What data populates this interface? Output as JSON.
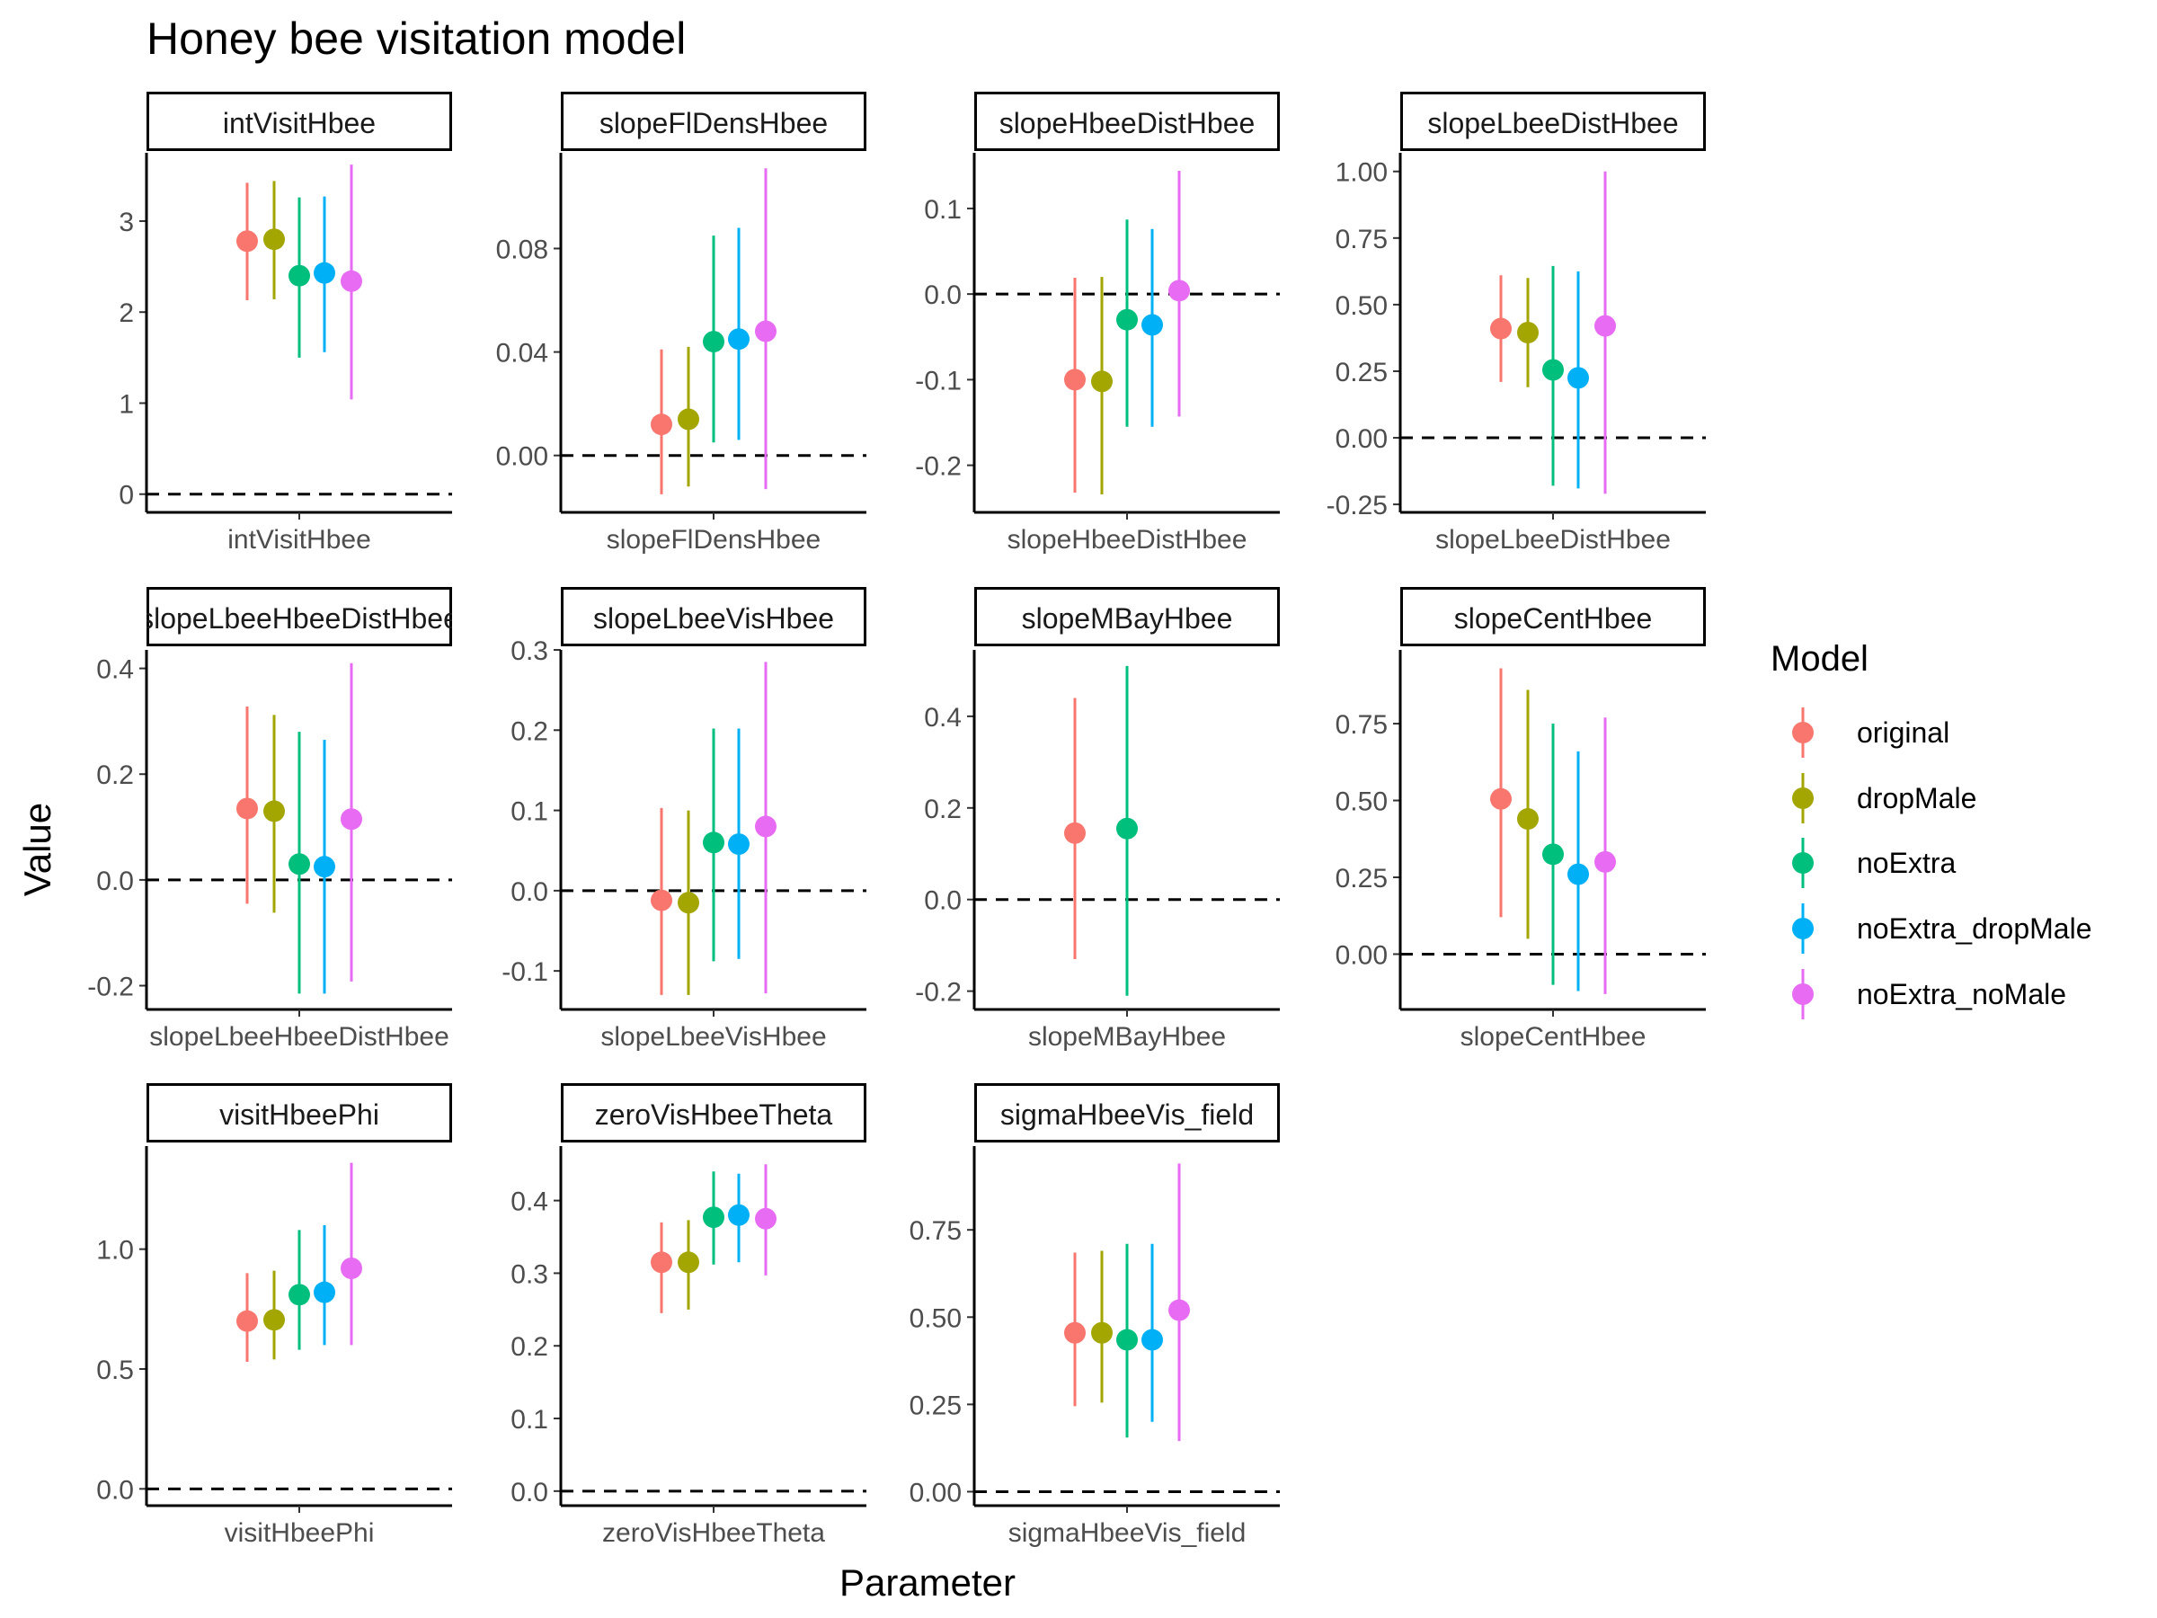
{
  "chart_data": {
    "type": "scatter",
    "title": "Honey bee visitation model",
    "xlabel": "Parameter",
    "ylabel": "Value",
    "legend": {
      "title": "Model",
      "position": "right",
      "entries": [
        "original",
        "dropMale",
        "noExtra",
        "noExtra_dropMale",
        "noExtra_noMale"
      ]
    },
    "series_colors": {
      "original": "#F8766D",
      "dropMale": "#A3A500",
      "noExtra": "#00BF7D",
      "noExtra_dropMale": "#00B0F6",
      "noExtra_noMale": "#E76BF3"
    },
    "reference_line": 0,
    "grid": false,
    "panels": [
      {
        "name": "intVisitHbee",
        "strip": "intVisitHbee",
        "tick_label": "intVisitHbee",
        "ylim": [
          -0.2,
          3.75
        ],
        "yticks": [
          0,
          1,
          2,
          3
        ],
        "ytick_labels": [
          "0",
          "1",
          "2",
          "3"
        ],
        "points": [
          {
            "model": "original",
            "est": 2.78,
            "lo": 2.13,
            "hi": 3.42
          },
          {
            "model": "dropMale",
            "est": 2.8,
            "lo": 2.14,
            "hi": 3.44
          },
          {
            "model": "noExtra",
            "est": 2.4,
            "lo": 1.5,
            "hi": 3.26
          },
          {
            "model": "noExtra_dropMale",
            "est": 2.43,
            "lo": 1.56,
            "hi": 3.27
          },
          {
            "model": "noExtra_noMale",
            "est": 2.34,
            "lo": 1.04,
            "hi": 3.62
          }
        ]
      },
      {
        "name": "slopeFlDensHbee",
        "strip": "slopeFlDensHbee",
        "tick_label": "slopeFlDensHbee",
        "ylim": [
          -0.022,
          0.117
        ],
        "yticks": [
          0,
          0.04,
          0.08
        ],
        "ytick_labels": [
          "0.00",
          "0.04",
          "0.08"
        ],
        "points": [
          {
            "model": "original",
            "est": 0.012,
            "lo": -0.015,
            "hi": 0.041
          },
          {
            "model": "dropMale",
            "est": 0.014,
            "lo": -0.012,
            "hi": 0.042
          },
          {
            "model": "noExtra",
            "est": 0.044,
            "lo": 0.005,
            "hi": 0.085
          },
          {
            "model": "noExtra_dropMale",
            "est": 0.045,
            "lo": 0.006,
            "hi": 0.088
          },
          {
            "model": "noExtra_noMale",
            "est": 0.048,
            "lo": -0.013,
            "hi": 0.111
          }
        ]
      },
      {
        "name": "slopeHbeeDistHbee",
        "strip": "slopeHbeeDistHbee",
        "tick_label": "slopeHbeeDistHbee",
        "ylim": [
          -0.255,
          0.165
        ],
        "yticks": [
          -0.2,
          -0.1,
          0,
          0.1
        ],
        "ytick_labels": [
          "-0.2",
          "-0.1",
          "0.0",
          "0.1"
        ],
        "points": [
          {
            "model": "original",
            "est": -0.1,
            "lo": -0.232,
            "hi": 0.019
          },
          {
            "model": "dropMale",
            "est": -0.102,
            "lo": -0.234,
            "hi": 0.02
          },
          {
            "model": "noExtra",
            "est": -0.03,
            "lo": -0.155,
            "hi": 0.087
          },
          {
            "model": "noExtra_dropMale",
            "est": -0.036,
            "lo": -0.155,
            "hi": 0.076
          },
          {
            "model": "noExtra_noMale",
            "est": 0.004,
            "lo": -0.143,
            "hi": 0.144
          }
        ]
      },
      {
        "name": "slopeLbeeDistHbee",
        "strip": "slopeLbeeDistHbee",
        "tick_label": "slopeLbeeDistHbee",
        "ylim": [
          -0.28,
          1.07
        ],
        "yticks": [
          -0.25,
          0,
          0.25,
          0.5,
          0.75,
          1.0
        ],
        "ytick_labels": [
          "-0.25",
          "0.00",
          "0.25",
          "0.50",
          "0.75",
          "1.00"
        ],
        "points": [
          {
            "model": "original",
            "est": 0.41,
            "lo": 0.21,
            "hi": 0.61
          },
          {
            "model": "dropMale",
            "est": 0.395,
            "lo": 0.19,
            "hi": 0.6
          },
          {
            "model": "noExtra",
            "est": 0.255,
            "lo": -0.18,
            "hi": 0.645
          },
          {
            "model": "noExtra_dropMale",
            "est": 0.225,
            "lo": -0.19,
            "hi": 0.625
          },
          {
            "model": "noExtra_noMale",
            "est": 0.42,
            "lo": -0.21,
            "hi": 1.0
          }
        ]
      },
      {
        "name": "slopeLbeeHbeeDistHbee",
        "strip": "slopeLbeeHbeeDistHbee",
        "tick_label": "slopeLbeeHbeeDistHbee",
        "ylim": [
          -0.245,
          0.435
        ],
        "yticks": [
          -0.2,
          0,
          0.2,
          0.4
        ],
        "ytick_labels": [
          "-0.2",
          "0.0",
          "0.2",
          "0.4"
        ],
        "points": [
          {
            "model": "original",
            "est": 0.135,
            "lo": -0.045,
            "hi": 0.328
          },
          {
            "model": "dropMale",
            "est": 0.13,
            "lo": -0.062,
            "hi": 0.312
          },
          {
            "model": "noExtra",
            "est": 0.03,
            "lo": -0.215,
            "hi": 0.28
          },
          {
            "model": "noExtra_dropMale",
            "est": 0.025,
            "lo": -0.215,
            "hi": 0.265
          },
          {
            "model": "noExtra_noMale",
            "est": 0.115,
            "lo": -0.192,
            "hi": 0.41
          }
        ]
      },
      {
        "name": "slopeLbeeVisHbee",
        "strip": "slopeLbeeVisHbee",
        "tick_label": "slopeLbeeVisHbee",
        "ylim": [
          -0.148,
          0.3
        ],
        "yticks": [
          -0.1,
          0,
          0.1,
          0.2,
          0.3
        ],
        "ytick_labels": [
          "-0.1",
          "0.0",
          "0.1",
          "0.2",
          "0.3"
        ],
        "points": [
          {
            "model": "original",
            "est": -0.012,
            "lo": -0.13,
            "hi": 0.103
          },
          {
            "model": "dropMale",
            "est": -0.015,
            "lo": -0.13,
            "hi": 0.1
          },
          {
            "model": "noExtra",
            "est": 0.06,
            "lo": -0.088,
            "hi": 0.202
          },
          {
            "model": "noExtra_dropMale",
            "est": 0.058,
            "lo": -0.085,
            "hi": 0.202
          },
          {
            "model": "noExtra_noMale",
            "est": 0.08,
            "lo": -0.128,
            "hi": 0.285
          }
        ]
      },
      {
        "name": "slopeMBayHbee",
        "strip": "slopeMBayHbee",
        "tick_label": "slopeMBayHbee",
        "ylim": [
          -0.24,
          0.545
        ],
        "yticks": [
          -0.2,
          0,
          0.2,
          0.4
        ],
        "ytick_labels": [
          "-0.2",
          "0.0",
          "0.2",
          "0.4"
        ],
        "points": [
          {
            "model": "original",
            "est": 0.145,
            "lo": -0.13,
            "hi": 0.44
          },
          {
            "model": "noExtra",
            "est": 0.155,
            "lo": -0.21,
            "hi": 0.51
          }
        ]
      },
      {
        "name": "slopeCentHbee",
        "strip": "slopeCentHbee",
        "tick_label": "slopeCentHbee",
        "ylim": [
          -0.18,
          0.99
        ],
        "yticks": [
          0,
          0.25,
          0.5,
          0.75
        ],
        "ytick_labels": [
          "0.00",
          "0.25",
          "0.50",
          "0.75"
        ],
        "points": [
          {
            "model": "original",
            "est": 0.505,
            "lo": 0.12,
            "hi": 0.93
          },
          {
            "model": "dropMale",
            "est": 0.44,
            "lo": 0.05,
            "hi": 0.86
          },
          {
            "model": "noExtra",
            "est": 0.325,
            "lo": -0.1,
            "hi": 0.75
          },
          {
            "model": "noExtra_dropMale",
            "est": 0.26,
            "lo": -0.12,
            "hi": 0.66
          },
          {
            "model": "noExtra_noMale",
            "est": 0.3,
            "lo": -0.13,
            "hi": 0.77
          }
        ]
      },
      {
        "name": "visitHbeePhi",
        "strip": "visitHbeePhi",
        "tick_label": "visitHbeePhi",
        "ylim": [
          -0.07,
          1.43
        ],
        "yticks": [
          0,
          0.5,
          1.0
        ],
        "ytick_labels": [
          "0.0",
          "0.5",
          "1.0"
        ],
        "points": [
          {
            "model": "original",
            "est": 0.7,
            "lo": 0.53,
            "hi": 0.9
          },
          {
            "model": "dropMale",
            "est": 0.705,
            "lo": 0.54,
            "hi": 0.91
          },
          {
            "model": "noExtra",
            "est": 0.81,
            "lo": 0.58,
            "hi": 1.08
          },
          {
            "model": "noExtra_dropMale",
            "est": 0.82,
            "lo": 0.6,
            "hi": 1.1
          },
          {
            "model": "noExtra_noMale",
            "est": 0.92,
            "lo": 0.6,
            "hi": 1.36
          }
        ]
      },
      {
        "name": "zeroVisHbeeTheta",
        "strip": "zeroVisHbeeTheta",
        "tick_label": "zeroVisHbeeTheta",
        "ylim": [
          -0.02,
          0.475
        ],
        "yticks": [
          0,
          0.1,
          0.2,
          0.3,
          0.4
        ],
        "ytick_labels": [
          "0.0",
          "0.1",
          "0.2",
          "0.3",
          "0.4"
        ],
        "points": [
          {
            "model": "original",
            "est": 0.315,
            "lo": 0.245,
            "hi": 0.37
          },
          {
            "model": "dropMale",
            "est": 0.315,
            "lo": 0.25,
            "hi": 0.373
          },
          {
            "model": "noExtra",
            "est": 0.377,
            "lo": 0.312,
            "hi": 0.44
          },
          {
            "model": "noExtra_dropMale",
            "est": 0.38,
            "lo": 0.315,
            "hi": 0.437
          },
          {
            "model": "noExtra_noMale",
            "est": 0.375,
            "lo": 0.297,
            "hi": 0.45
          }
        ]
      },
      {
        "name": "sigmaHbeeVis_field",
        "strip": "sigmaHbeeVis_field",
        "tick_label": "sigmaHbeeVis_field",
        "ylim": [
          -0.04,
          0.99
        ],
        "yticks": [
          0,
          0.25,
          0.5,
          0.75
        ],
        "ytick_labels": [
          "0.00",
          "0.25",
          "0.50",
          "0.75"
        ],
        "points": [
          {
            "model": "original",
            "est": 0.455,
            "lo": 0.245,
            "hi": 0.685
          },
          {
            "model": "dropMale",
            "est": 0.455,
            "lo": 0.255,
            "hi": 0.69
          },
          {
            "model": "noExtra",
            "est": 0.435,
            "lo": 0.155,
            "hi": 0.71
          },
          {
            "model": "noExtra_dropMale",
            "est": 0.435,
            "lo": 0.2,
            "hi": 0.71
          },
          {
            "model": "noExtra_noMale",
            "est": 0.52,
            "lo": 0.145,
            "hi": 0.94
          }
        ]
      }
    ]
  }
}
